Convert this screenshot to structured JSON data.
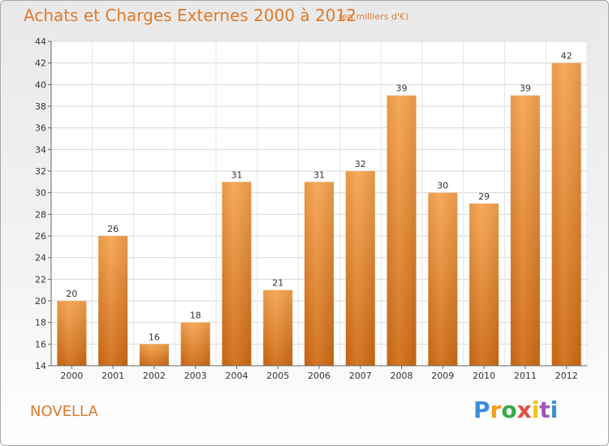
{
  "title": "Achats et Charges Externes 2000 à 2012",
  "unit_note": "(en milliers d'€)",
  "commune": "NOVELLA",
  "logo": {
    "text": "Proxiti",
    "letters": [
      "P",
      "r",
      "o",
      "x",
      "i",
      "t",
      "i"
    ]
  },
  "colors": {
    "bar_top": "#f7a44f",
    "bar_bottom": "#cf6b14",
    "title": "#e07a2c"
  },
  "chart_data": {
    "type": "bar",
    "title": "Achats et Charges Externes 2000 à 2012",
    "xlabel": "",
    "ylabel": "",
    "categories": [
      "2000",
      "2001",
      "2002",
      "2003",
      "2004",
      "2005",
      "2006",
      "2007",
      "2008",
      "2009",
      "2010",
      "2011",
      "2012"
    ],
    "values": [
      20,
      26,
      16,
      18,
      31,
      21,
      31,
      32,
      39,
      30,
      29,
      39,
      42
    ],
    "ylim": [
      14,
      44
    ],
    "yticks": [
      14,
      16,
      18,
      20,
      22,
      24,
      26,
      28,
      30,
      32,
      34,
      36,
      38,
      40,
      42,
      44
    ],
    "grid": true,
    "legend": "none"
  }
}
